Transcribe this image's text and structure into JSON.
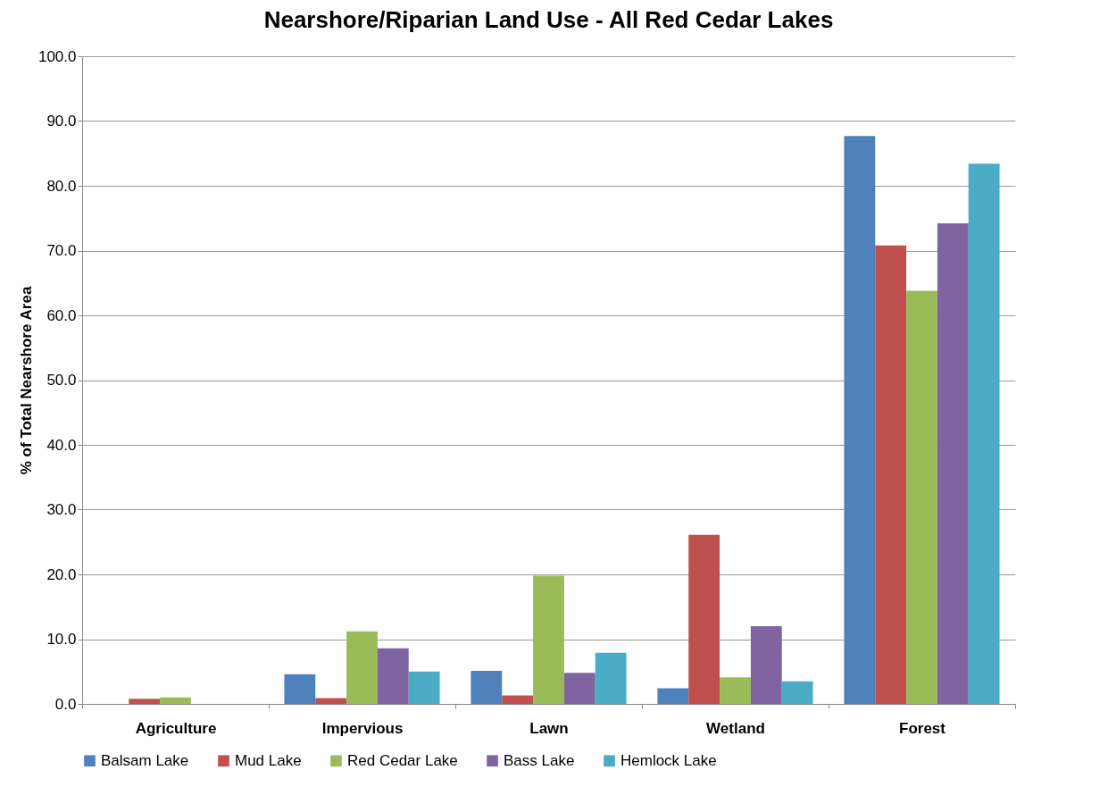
{
  "chart_data": {
    "type": "bar",
    "title": "Nearshore/Riparian Land Use - All Red Cedar Lakes",
    "ylabel": "% of Total Nearshore Area",
    "categories": [
      "Agriculture",
      "Impervious",
      "Lawn",
      "Wetland",
      "Forest"
    ],
    "series": [
      {
        "name": "Balsam Lake",
        "color": "#4f81bd",
        "values": [
          0,
          4.6,
          5.1,
          2.4,
          87.7
        ]
      },
      {
        "name": "Mud Lake",
        "color": "#c0504d",
        "values": [
          0.8,
          0.9,
          1.3,
          26.1,
          70.8
        ]
      },
      {
        "name": "Red Cedar Lake",
        "color": "#9bbb59",
        "values": [
          1.0,
          11.2,
          19.8,
          4.1,
          63.8
        ]
      },
      {
        "name": "Bass Lake",
        "color": "#8064a2",
        "values": [
          0,
          8.6,
          4.8,
          12.0,
          74.2
        ]
      },
      {
        "name": "Hemlock Lake",
        "color": "#4bacc6",
        "values": [
          0,
          5.0,
          7.9,
          3.5,
          83.4
        ]
      }
    ],
    "ylim": [
      0,
      100
    ],
    "yticks": [
      {
        "value": 0,
        "label": "0.0"
      },
      {
        "value": 10,
        "label": "10.0"
      },
      {
        "value": 20,
        "label": "20.0"
      },
      {
        "value": 30,
        "label": "30.0"
      },
      {
        "value": 40,
        "label": "40.0"
      },
      {
        "value": 50,
        "label": "50.0"
      },
      {
        "value": 60,
        "label": "60.0"
      },
      {
        "value": 70,
        "label": "70.0"
      },
      {
        "value": 80,
        "label": "80.0"
      },
      {
        "value": 90,
        "label": "90.0"
      },
      {
        "value": 100,
        "label": "100.0"
      }
    ],
    "grid": "y",
    "legend": "bottom"
  }
}
